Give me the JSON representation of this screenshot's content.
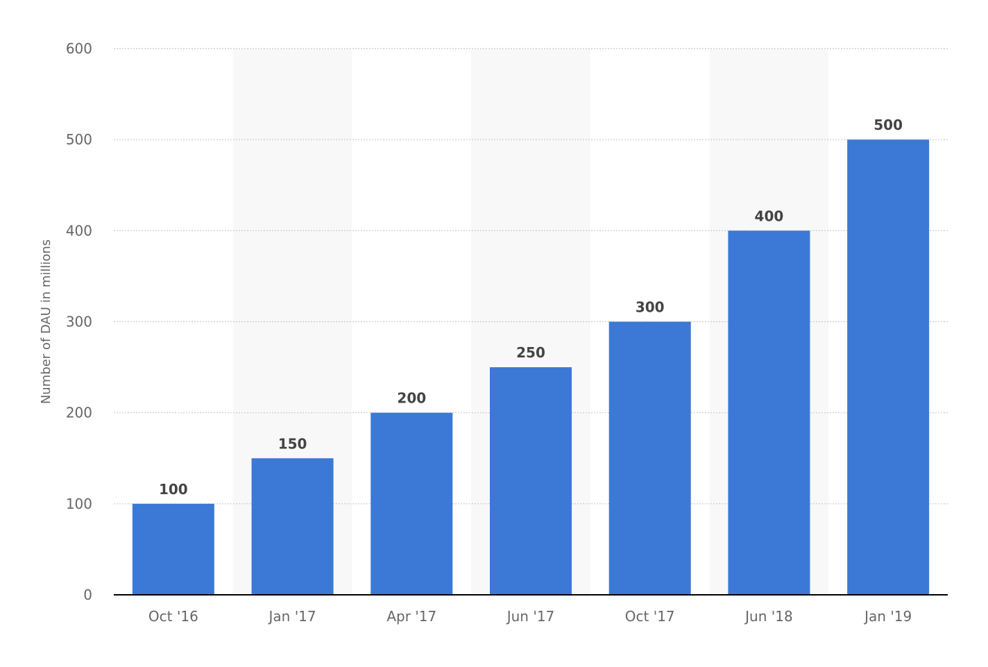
{
  "chart_data": {
    "type": "bar",
    "categories": [
      "Oct '16",
      "Jan '17",
      "Apr '17",
      "Jun '17",
      "Oct '17",
      "Jun '18",
      "Jan '19"
    ],
    "values": [
      100,
      150,
      200,
      250,
      300,
      400,
      500
    ],
    "title": "",
    "xlabel": "",
    "ylabel": "Number of DAU in millions",
    "ylim": [
      0,
      600
    ],
    "yticks": [
      0,
      100,
      200,
      300,
      400,
      500,
      600
    ],
    "grid": true,
    "bar_color": "#3c78d6",
    "band_color": "#f8f8f8",
    "gridline_color": "#c8c8c8",
    "axis_color": "#000000",
    "show_data_labels": true
  }
}
